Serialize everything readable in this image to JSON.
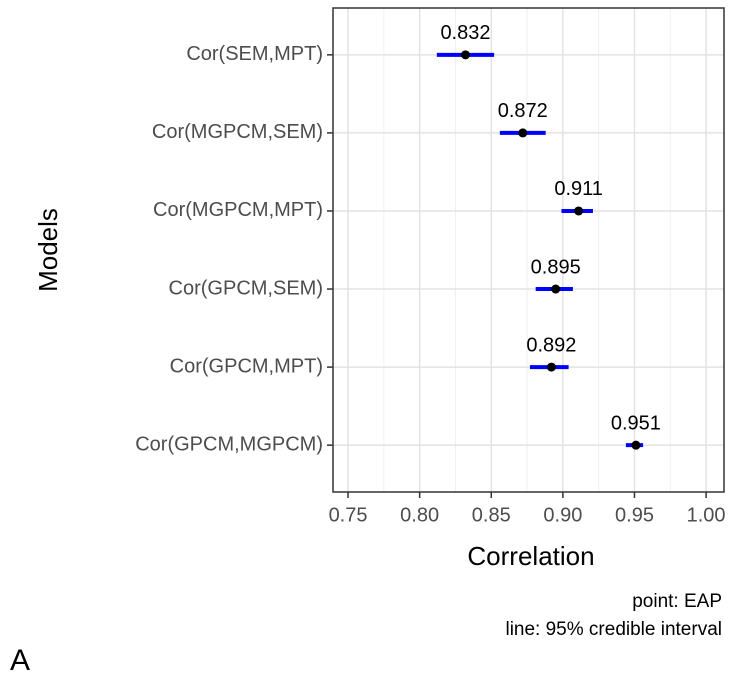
{
  "chart_data": {
    "type": "dot",
    "xlabel": "Correlation",
    "ylabel": "Models",
    "categories": [
      "Cor(SEM,MPT)",
      "Cor(MGPCM,SEM)",
      "Cor(MGPCM,MPT)",
      "Cor(GPCM,SEM)",
      "Cor(GPCM,MPT)",
      "Cor(GPCM,MGPCM)"
    ],
    "series": [
      {
        "values": [
          0.832,
          0.872,
          0.911,
          0.895,
          0.892,
          0.951
        ],
        "lower": [
          0.812,
          0.856,
          0.899,
          0.881,
          0.877,
          0.944
        ],
        "upper": [
          0.852,
          0.888,
          0.921,
          0.907,
          0.904,
          0.956
        ],
        "color": "#000000",
        "interval_color": "#0000ff"
      }
    ],
    "xlim": [
      0.7395,
      1.0125
    ],
    "xticks": [
      {
        "value": 0.75,
        "label": "0.75"
      },
      {
        "value": 0.8,
        "label": "0.80"
      },
      {
        "value": 0.85,
        "label": "0.85"
      },
      {
        "value": 0.9,
        "label": "0.90"
      },
      {
        "value": 0.95,
        "label": "0.95"
      },
      {
        "value": 1.0,
        "label": "1.00"
      }
    ],
    "grid": true,
    "annotations": [
      "point: EAP",
      "line: 95% credible interval"
    ],
    "panel_label": "A"
  }
}
